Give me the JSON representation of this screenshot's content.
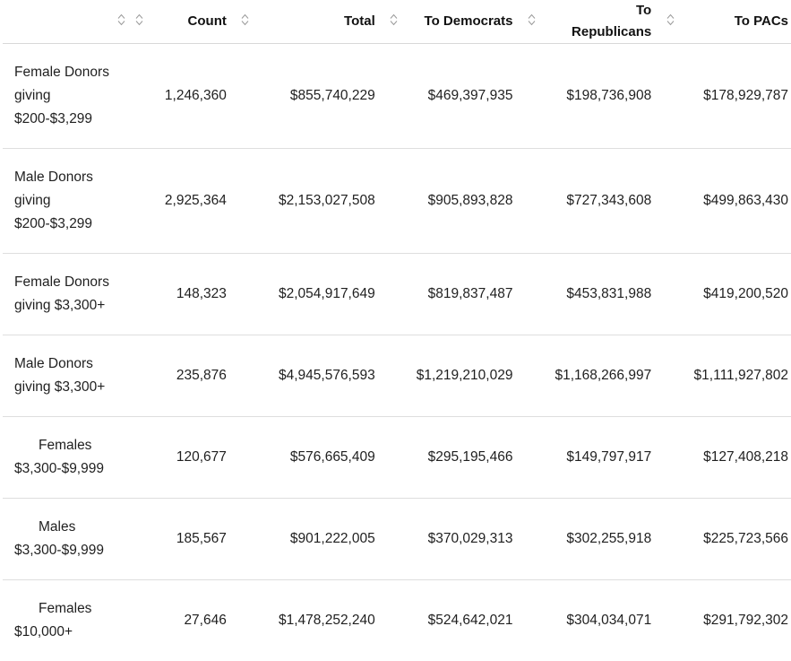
{
  "table": {
    "headers": [
      "",
      "Count",
      "Total",
      "To Democrats",
      "To Republicans",
      "To PACs"
    ],
    "rows": [
      {
        "label_lines": [
          "Female Donors",
          "giving",
          "$200-$3,299"
        ],
        "count": "1,246,360",
        "total": "$855,740,229",
        "dem": "$469,397,935",
        "rep": "$198,736,908",
        "pac": "$178,929,787"
      },
      {
        "label_lines": [
          "Male Donors",
          "giving",
          "$200-$3,299"
        ],
        "count": "2,925,364",
        "total": "$2,153,027,508",
        "dem": "$905,893,828",
        "rep": "$727,343,608",
        "pac": "$499,863,430"
      },
      {
        "label_lines": [
          "Female Donors",
          "giving $3,300+"
        ],
        "count": "148,323",
        "total": "$2,054,917,649",
        "dem": "$819,837,487",
        "rep": "$453,831,988",
        "pac": "$419,200,520"
      },
      {
        "label_lines": [
          "Male Donors",
          "giving $3,300+"
        ],
        "count": "235,876",
        "total": "$4,945,576,593",
        "dem": "$1,219,210,029",
        "rep": "$1,168,266,997",
        "pac": "$1,111,927,802"
      },
      {
        "label_lines": [
          "Females",
          "$3,300-$9,999"
        ],
        "count": "120,677",
        "total": "$576,665,409",
        "dem": "$295,195,466",
        "rep": "$149,797,917",
        "pac": "$127,408,218"
      },
      {
        "label_lines": [
          "Males",
          "$3,300-$9,999"
        ],
        "count": "185,567",
        "total": "$901,222,005",
        "dem": "$370,029,313",
        "rep": "$302,255,918",
        "pac": "$225,723,566"
      },
      {
        "label_lines": [
          "Females",
          "$10,000+"
        ],
        "count": "27,646",
        "total": "$1,478,252,240",
        "dem": "$524,642,021",
        "rep": "$304,034,071",
        "pac": "$291,792,302"
      }
    ]
  },
  "icons": {
    "sort": "sort-updown-icon"
  }
}
